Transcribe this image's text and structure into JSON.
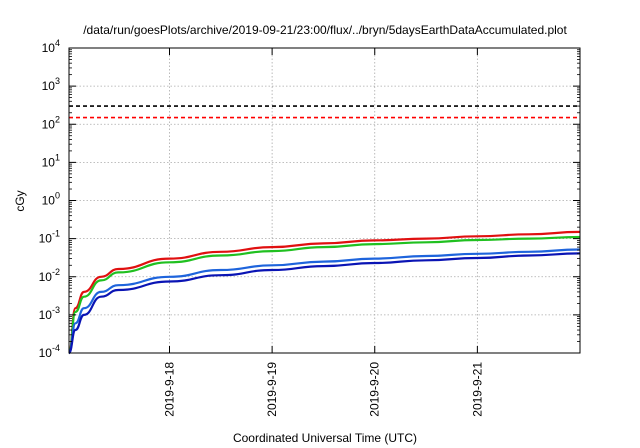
{
  "chart_data": {
    "type": "line",
    "title": "/data/run/goesPlots/archive/2019-09-21/23:00/flux/../bryn/5daysEarthDataAccumulated.plot",
    "xlabel": "Coordinated Universal Time (UTC)",
    "ylabel": "cGy",
    "y_scale": "log",
    "ylim": [
      0.0001,
      10000
    ],
    "xlim": [
      "2019-09-17 00:30",
      "2019-09-22 00:00"
    ],
    "x_ticks": [
      "2019-9-18",
      "2019-9-19",
      "2019-9-20",
      "2019-9-21"
    ],
    "y_ticks": [
      {
        "base": "10",
        "exp": "-4"
      },
      {
        "base": "10",
        "exp": "-3"
      },
      {
        "base": "10",
        "exp": "-2"
      },
      {
        "base": "10",
        "exp": "-1"
      },
      {
        "base": "10",
        "exp": "0"
      },
      {
        "base": "10",
        "exp": "1"
      },
      {
        "base": "10",
        "exp": "2"
      },
      {
        "base": "10",
        "exp": "3"
      },
      {
        "base": "10",
        "exp": "4"
      }
    ],
    "grid": true,
    "reference_lines": [
      {
        "value": 300,
        "color": "#000000",
        "style": "dashed"
      },
      {
        "value": 150,
        "color": "#ff0000",
        "style": "dashed"
      }
    ],
    "series": [
      {
        "color": "#e01010",
        "x": [
          "2019-09-17 00:30",
          "2019-09-17 02:00",
          "2019-09-17 04:00",
          "2019-09-17 08:00",
          "2019-09-17 12:00",
          "2019-09-18 00:00",
          "2019-09-18 12:00",
          "2019-09-19 00:00",
          "2019-09-19 12:00",
          "2019-09-20 00:00",
          "2019-09-20 12:00",
          "2019-09-21 00:00",
          "2019-09-21 12:00",
          "2019-09-22 00:00"
        ],
        "y": [
          0.0001,
          0.0015,
          0.004,
          0.01,
          0.016,
          0.03,
          0.045,
          0.06,
          0.075,
          0.09,
          0.1,
          0.115,
          0.13,
          0.15
        ]
      },
      {
        "color": "#20c020",
        "x": [
          "2019-09-17 00:30",
          "2019-09-17 02:00",
          "2019-09-17 04:00",
          "2019-09-17 08:00",
          "2019-09-17 12:00",
          "2019-09-18 00:00",
          "2019-09-18 12:00",
          "2019-09-19 00:00",
          "2019-09-19 12:00",
          "2019-09-20 00:00",
          "2019-09-20 12:00",
          "2019-09-21 00:00",
          "2019-09-21 12:00",
          "2019-09-22 00:00"
        ],
        "y": [
          0.0001,
          0.0012,
          0.003,
          0.008,
          0.013,
          0.024,
          0.036,
          0.047,
          0.06,
          0.072,
          0.08,
          0.092,
          0.1,
          0.11
        ]
      },
      {
        "color": "#1e64dc",
        "x": [
          "2019-09-17 00:30",
          "2019-09-17 02:00",
          "2019-09-17 04:00",
          "2019-09-17 08:00",
          "2019-09-17 12:00",
          "2019-09-18 00:00",
          "2019-09-18 12:00",
          "2019-09-19 00:00",
          "2019-09-19 12:00",
          "2019-09-20 00:00",
          "2019-09-20 12:00",
          "2019-09-21 00:00",
          "2019-09-21 12:00",
          "2019-09-22 00:00"
        ],
        "y": [
          0.0001,
          0.0006,
          0.0015,
          0.004,
          0.006,
          0.01,
          0.015,
          0.02,
          0.025,
          0.03,
          0.035,
          0.04,
          0.045,
          0.052
        ]
      },
      {
        "color": "#0a14b4",
        "x": [
          "2019-09-17 00:30",
          "2019-09-17 02:00",
          "2019-09-17 04:00",
          "2019-09-17 08:00",
          "2019-09-17 12:00",
          "2019-09-18 00:00",
          "2019-09-18 12:00",
          "2019-09-19 00:00",
          "2019-09-19 12:00",
          "2019-09-20 00:00",
          "2019-09-20 12:00",
          "2019-09-21 00:00",
          "2019-09-21 12:00",
          "2019-09-22 00:00"
        ],
        "y": [
          0.0001,
          0.0004,
          0.001,
          0.003,
          0.0045,
          0.0075,
          0.011,
          0.015,
          0.019,
          0.023,
          0.027,
          0.031,
          0.036,
          0.041
        ]
      }
    ]
  }
}
